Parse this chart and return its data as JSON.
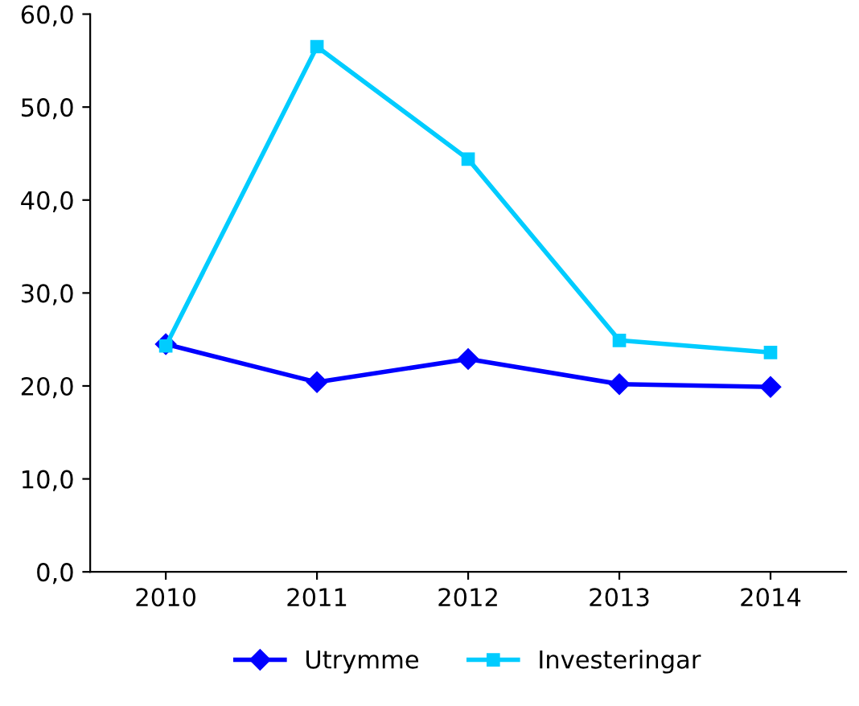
{
  "chart_data": {
    "type": "line",
    "categories": [
      "2010",
      "2011",
      "2012",
      "2013",
      "2014"
    ],
    "series": [
      {
        "name": "Utrymme",
        "color": "#0000ff",
        "marker": "diamond",
        "values": [
          24.5,
          20.4,
          22.9,
          20.2,
          19.9
        ]
      },
      {
        "name": "Investeringar",
        "color": "#00ccff",
        "marker": "square",
        "values": [
          24.3,
          56.5,
          44.4,
          24.9,
          23.6
        ]
      }
    ],
    "ylim": [
      0,
      60
    ],
    "yticks": [
      {
        "value": 0,
        "label": "0,0"
      },
      {
        "value": 10,
        "label": "10,0"
      },
      {
        "value": 20,
        "label": "20,0"
      },
      {
        "value": 30,
        "label": "30,0"
      },
      {
        "value": 40,
        "label": "40,0"
      },
      {
        "value": 50,
        "label": "50,0"
      },
      {
        "value": 60,
        "label": "60,0"
      }
    ],
    "legend": "bottom",
    "grid": false,
    "line_style": "solid"
  }
}
